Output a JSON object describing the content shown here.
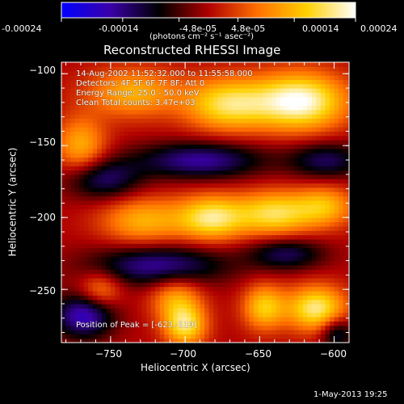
{
  "colorbar": {
    "tick_labels": [
      "-0.00024",
      "-0.00014",
      "-4.8e-05",
      "4.8e-05",
      "0.00014",
      "0.00024"
    ],
    "tick_values": [
      -0.00024,
      -0.00014,
      -4.8e-05,
      4.8e-05,
      0.00014,
      0.00024
    ],
    "units_label": "(photons cm⁻² s⁻¹ asec⁻²)",
    "range": [
      -0.00024,
      0.00024
    ],
    "colors": [
      "#0000ff",
      "#3a00a8",
      "#000000",
      "#b00000",
      "#ff7000",
      "#ffd000",
      "#ffffff"
    ]
  },
  "annotations": {
    "time_range": "14-Aug-2002 11:52:32.000 to 11:55:58.000",
    "detectors": "Detectors: 4F 5F 6F 7F 8F; Att 0",
    "energy_range": "Energy Range: 25.0 - 50.0 keV",
    "clean": "Clean     Total counts: 3.47e+03",
    "peak": "Position of Peak = [-623,-119]"
  },
  "footer_timestamp": "1-May-2013 19:25",
  "chart_data": {
    "type": "heatmap",
    "title": "Reconstructed RHESSI Image",
    "xlabel": "Heliocentric X (arcsec)",
    "ylabel": "Heliocentric Y (arcsec)",
    "xlim": [
      -783,
      -590
    ],
    "ylim": [
      -287,
      -92
    ],
    "x_ticks": [
      -750,
      -700,
      -650,
      -600
    ],
    "y_ticks": [
      -100,
      -150,
      -200,
      -250
    ],
    "x_tick_labels": [
      "−750",
      "−700",
      "−650",
      "−600"
    ],
    "y_tick_labels": [
      "−100",
      "−150",
      "−200",
      "−250"
    ],
    "sources": [
      {
        "x": -623,
        "y": -119,
        "sx": 22,
        "sy": 14,
        "amp": 1.0
      },
      {
        "x": -672,
        "y": -121,
        "sx": 20,
        "sy": 13,
        "amp": 0.75
      },
      {
        "x": -735,
        "y": -113,
        "sx": 22,
        "sy": 12,
        "amp": 0.55
      },
      {
        "x": -770,
        "y": -150,
        "sx": 12,
        "sy": 14,
        "amp": 0.55
      },
      {
        "x": -728,
        "y": -202,
        "sx": 20,
        "sy": 12,
        "amp": 0.55
      },
      {
        "x": -682,
        "y": -200,
        "sx": 16,
        "sy": 11,
        "amp": 0.8
      },
      {
        "x": -640,
        "y": -197,
        "sx": 18,
        "sy": 11,
        "amp": 0.75
      },
      {
        "x": -606,
        "y": -192,
        "sx": 14,
        "sy": 10,
        "amp": 0.55
      },
      {
        "x": -757,
        "y": -250,
        "sx": 10,
        "sy": 9,
        "amp": 0.45
      },
      {
        "x": -706,
        "y": -256,
        "sx": 12,
        "sy": 11,
        "amp": 0.5
      },
      {
        "x": -700,
        "y": -275,
        "sx": 10,
        "sy": 10,
        "amp": 0.75
      },
      {
        "x": -647,
        "y": -262,
        "sx": 10,
        "sy": 11,
        "amp": 0.65
      },
      {
        "x": -612,
        "y": -263,
        "sx": 14,
        "sy": 11,
        "amp": 0.85
      },
      {
        "x": -690,
        "y": -160,
        "sx": 30,
        "sy": 9,
        "amp": -0.65
      },
      {
        "x": -755,
        "y": -173,
        "sx": 18,
        "sy": 10,
        "amp": -0.55
      },
      {
        "x": -605,
        "y": -160,
        "sx": 18,
        "sy": 9,
        "amp": -0.5
      },
      {
        "x": -718,
        "y": -233,
        "sx": 32,
        "sy": 10,
        "amp": -0.65
      },
      {
        "x": -632,
        "y": -225,
        "sx": 18,
        "sy": 8,
        "amp": -0.5
      },
      {
        "x": -768,
        "y": -268,
        "sx": 14,
        "sy": 11,
        "amp": -0.75
      },
      {
        "x": -598,
        "y": -280,
        "sx": 8,
        "sy": 8,
        "amp": -0.5
      }
    ]
  }
}
